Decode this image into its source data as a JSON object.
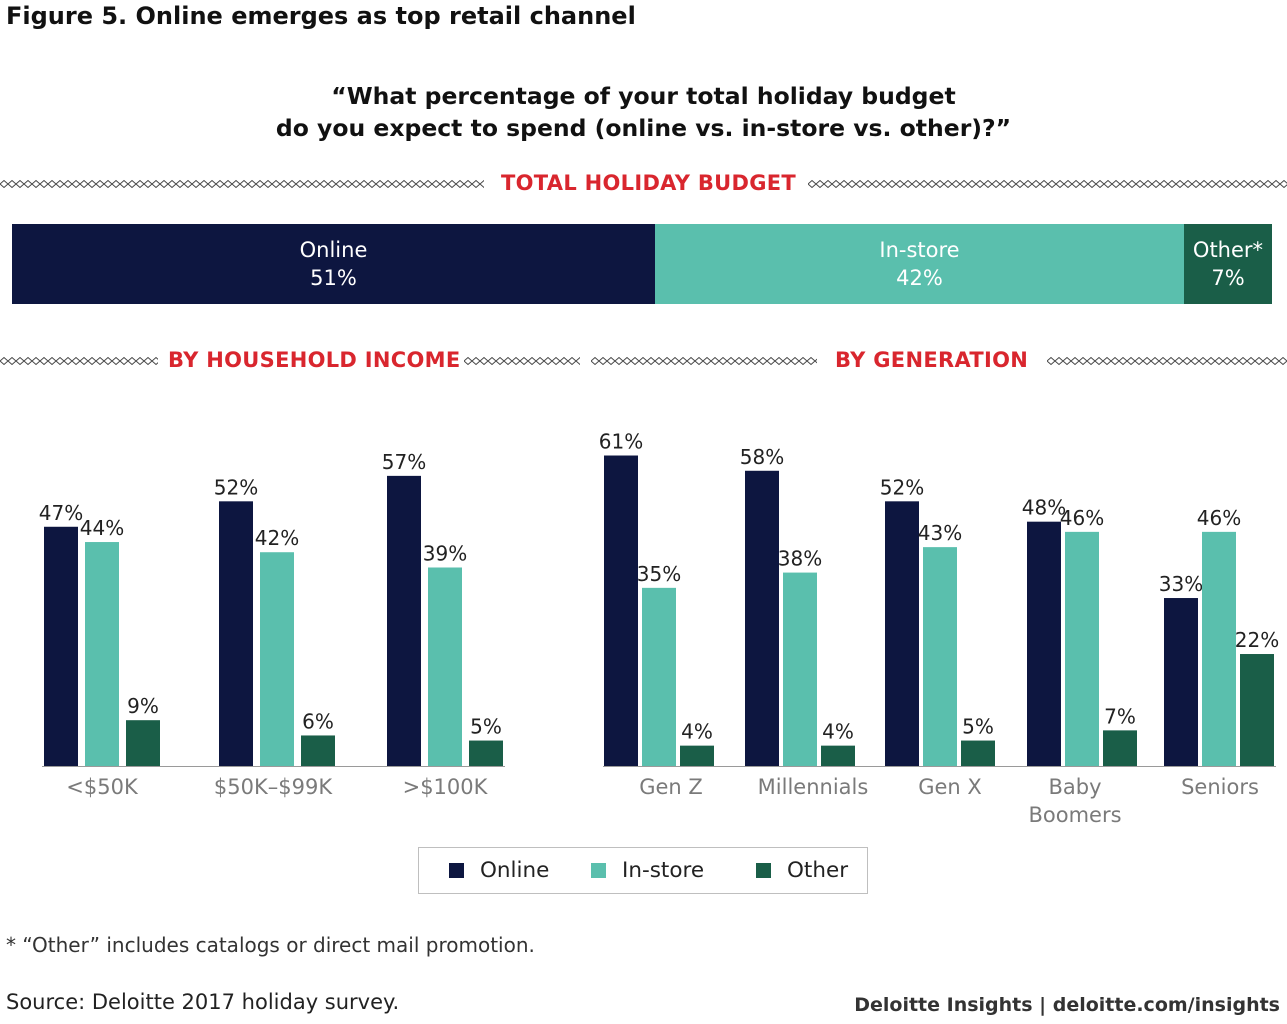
{
  "figure_title": "Figure 5. Online emerges as top retail channel",
  "question": {
    "line1": "“What percentage of your total holiday budget",
    "line2": "do you expect to spend (online vs. in-store vs. other)?”"
  },
  "sections": {
    "total": "TOTAL HOLIDAY BUDGET",
    "income": "BY HOUSEHOLD INCOME",
    "generation": "BY GENERATION"
  },
  "colors": {
    "online": "#0d1640",
    "in_store": "#5abfad",
    "other": "#1a5e48",
    "accent": "#d9262e",
    "axis": "#9a9a9a"
  },
  "total_budget": [
    {
      "label": "Online",
      "value_label": "51%",
      "value": 51
    },
    {
      "label": "In-store",
      "value_label": "42%",
      "value": 42
    },
    {
      "label": "Other*",
      "value_label": "7%",
      "value": 7
    }
  ],
  "chart_data": [
    {
      "type": "bar",
      "title": "BY HOUSEHOLD INCOME",
      "categories": [
        "<$50K",
        "$50K–$99K",
        ">$100K"
      ],
      "series": [
        {
          "name": "Online",
          "values": [
            47,
            52,
            57
          ]
        },
        {
          "name": "In-store",
          "values": [
            44,
            42,
            39
          ]
        },
        {
          "name": "Other",
          "values": [
            9,
            6,
            5
          ]
        }
      ],
      "ylim": [
        0,
        61
      ]
    },
    {
      "type": "bar",
      "title": "BY GENERATION",
      "categories": [
        "Gen Z",
        "Millennials",
        "Gen X",
        "Baby Boomers",
        "Seniors"
      ],
      "series": [
        {
          "name": "Online",
          "values": [
            61,
            58,
            52,
            48,
            33
          ]
        },
        {
          "name": "In-store",
          "values": [
            35,
            38,
            43,
            46,
            46
          ]
        },
        {
          "name": "Other",
          "values": [
            4,
            4,
            5,
            7,
            22
          ]
        }
      ],
      "ylim": [
        0,
        61
      ]
    }
  ],
  "legend": [
    "Online",
    "In-store",
    "Other"
  ],
  "footnote": "* “Other” includes catalogs or direct mail promotion.",
  "source": "Source: Deloitte 2017 holiday survey.",
  "brand": "Deloitte Insights | deloitte.com/insights"
}
